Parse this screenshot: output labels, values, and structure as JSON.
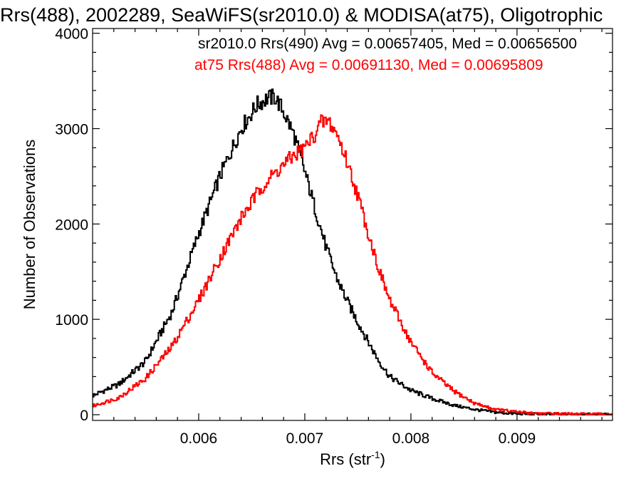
{
  "chart_data": {
    "type": "line",
    "title": "Rrs(488), 2002289, SeaWiFS(sr2010.0) & MODISA(at75), Oligotrophic",
    "xlabel_main": "Rrs (str",
    "xlabel_sup": "-1",
    "xlabel_close": ")",
    "ylabel": "Number of Observations",
    "xlim": [
      0.005,
      0.0099
    ],
    "ylim": [
      -60,
      4050
    ],
    "xticks": [
      0.006,
      0.007,
      0.008,
      0.009
    ],
    "xtick_labels": [
      "0.006",
      "0.007",
      "0.008",
      "0.009"
    ],
    "yticks": [
      0,
      1000,
      2000,
      3000,
      4000
    ],
    "ytick_labels": [
      "0",
      "1000",
      "2000",
      "3000",
      "4000"
    ],
    "grid": false,
    "legend_position": "top-right",
    "series": [
      {
        "name": "sr2010.0 Rrs(490) Avg = 0.00657405, Med = 0.00656500",
        "color": "#000000",
        "x": [
          0.005,
          0.00525,
          0.0055,
          0.00575,
          0.006,
          0.0062,
          0.0064,
          0.00655,
          0.00665,
          0.00672,
          0.0068,
          0.0069,
          0.007,
          0.0071,
          0.0072,
          0.0073,
          0.0074,
          0.0075,
          0.0076,
          0.0077,
          0.0078,
          0.008,
          0.0082,
          0.0084,
          0.0086,
          0.0088,
          0.009,
          0.00925,
          0.0095,
          0.0099
        ],
        "y": [
          200,
          320,
          560,
          1080,
          1900,
          2500,
          3000,
          3250,
          3320,
          3330,
          3180,
          2930,
          2550,
          2150,
          1760,
          1440,
          1190,
          970,
          760,
          560,
          400,
          255,
          170,
          100,
          55,
          25,
          10,
          5,
          2,
          0
        ]
      },
      {
        "name": "at75 Rrs(488) Avg = 0.00691130, Med = 0.00695809",
        "color": "#ff0000",
        "x": [
          0.005,
          0.00525,
          0.0055,
          0.00575,
          0.006,
          0.0062,
          0.0064,
          0.0066,
          0.0068,
          0.0069,
          0.007,
          0.0071,
          0.00715,
          0.00722,
          0.0073,
          0.0074,
          0.0075,
          0.0076,
          0.0077,
          0.0078,
          0.008,
          0.0082,
          0.0084,
          0.0086,
          0.0088,
          0.009,
          0.00925,
          0.0095,
          0.0099
        ],
        "y": [
          90,
          180,
          380,
          720,
          1200,
          1640,
          2060,
          2400,
          2620,
          2720,
          2800,
          2950,
          3060,
          3080,
          2950,
          2650,
          2300,
          1900,
          1520,
          1200,
          760,
          440,
          250,
          120,
          55,
          28,
          12,
          6,
          2
        ]
      }
    ]
  }
}
